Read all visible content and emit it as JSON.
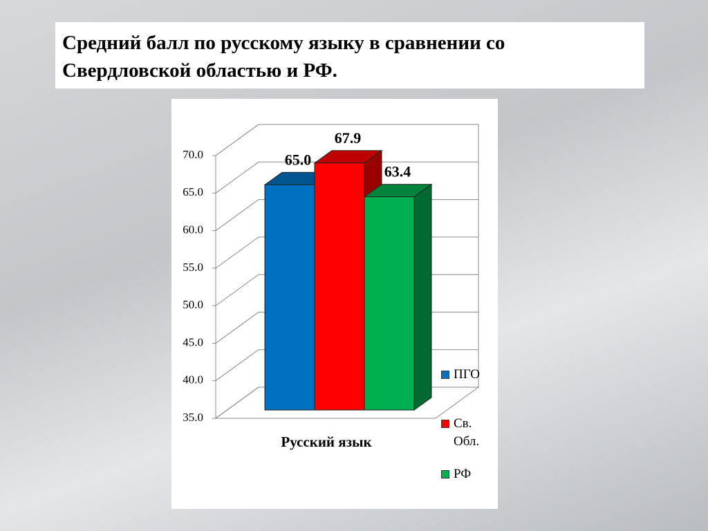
{
  "chart_data": {
    "type": "bar3d",
    "title": "Средний балл по русскому языку в сравнении со Свердловской областью и РФ.",
    "categories": [
      "Русский язык"
    ],
    "series": [
      {
        "name": "ПГО",
        "color": "#0070c0",
        "values": [
          65.0
        ],
        "value_labels": [
          "65.0"
        ]
      },
      {
        "name": "Св. Обл.",
        "color": "#ff0000",
        "values": [
          67.9
        ]
      },
      {
        "name": "РФ",
        "color": "#00b050",
        "values": [
          63.4
        ]
      }
    ],
    "ylim": [
      35,
      70
    ],
    "yticks": [
      {
        "value": 35,
        "label": "35.0"
      },
      {
        "value": 40,
        "label": "40.0"
      },
      {
        "value": 45,
        "label": "45.0"
      },
      {
        "value": 50,
        "label": "50.0"
      },
      {
        "value": 55,
        "label": "55.0"
      },
      {
        "value": 60,
        "label": "60.0"
      },
      {
        "value": 65,
        "label": "65.0"
      },
      {
        "value": 70,
        "label": "70.0"
      }
    ],
    "grid": true,
    "legend": "right"
  }
}
